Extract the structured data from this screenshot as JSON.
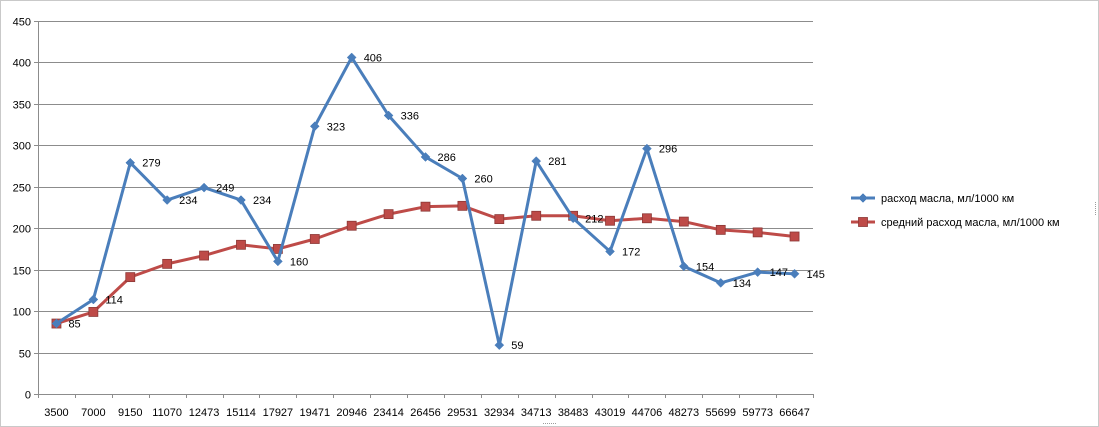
{
  "chart_data": {
    "type": "line",
    "title": "",
    "xlabel": "",
    "ylabel": "",
    "categories": [
      "3500",
      "7000",
      "9150",
      "11070",
      "12473",
      "15114",
      "17927",
      "19471",
      "20946",
      "23414",
      "26456",
      "29531",
      "32934",
      "34713",
      "38483",
      "43019",
      "44706",
      "48273",
      "55699",
      "59773",
      "66647"
    ],
    "ylim": [
      0,
      450
    ],
    "yticks": [
      "0",
      "50",
      "100",
      "150",
      "200",
      "250",
      "300",
      "350",
      "400",
      "450"
    ],
    "grid": true,
    "legend_position": "right",
    "series": [
      {
        "name": "расход масла, мл/1000 км",
        "color": "#4a7ebb",
        "marker": "diamond",
        "values": [
          85,
          114,
          279,
          234,
          249,
          234,
          160,
          323,
          406,
          336,
          286,
          260,
          59,
          281,
          212,
          172,
          296,
          154,
          134,
          147,
          145
        ],
        "labels": [
          "85",
          "114",
          "279",
          "234",
          "249",
          "234",
          "160",
          "323",
          "406",
          "336",
          "286",
          "260",
          "59",
          "281",
          "212",
          "172",
          "296",
          "154",
          "134",
          "147",
          "145"
        ]
      },
      {
        "name": "средний расход масла, мл/1000 км",
        "color": "#be4b48",
        "marker": "square",
        "values": [
          85,
          99,
          141,
          157,
          167,
          180,
          175,
          187,
          203,
          217,
          226,
          227,
          211,
          215,
          215,
          209,
          212,
          208,
          198,
          195,
          190
        ]
      }
    ]
  }
}
